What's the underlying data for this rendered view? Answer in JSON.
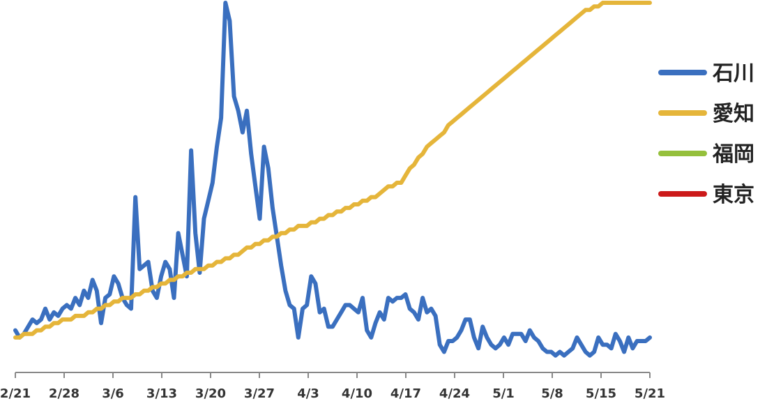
{
  "chart_data": {
    "type": "line",
    "title": "",
    "xlabel": "",
    "ylabel": "",
    "x_ticks": [
      "2/21",
      "2/28",
      "3/6",
      "3/13",
      "3/20",
      "3/27",
      "4/3",
      "4/10",
      "4/17",
      "4/24",
      "5/1",
      "5/8",
      "5/15",
      "5/21"
    ],
    "ylim": [
      0,
      100
    ],
    "grid": false,
    "legend_position": "right",
    "series": [
      {
        "name": "石川",
        "color": "#3a6fbf",
        "values": [
          9,
          7,
          8,
          10,
          12,
          11,
          12,
          15,
          12,
          14,
          13,
          15,
          16,
          15,
          18,
          16,
          20,
          18,
          23,
          20,
          11,
          18,
          19,
          24,
          22,
          18,
          16,
          15,
          46,
          26,
          27,
          28,
          20,
          18,
          24,
          28,
          26,
          18,
          36,
          30,
          24,
          59,
          36,
          25,
          40,
          45,
          50,
          60,
          68,
          100,
          95,
          74,
          70,
          64,
          70,
          58,
          49,
          40,
          60,
          54,
          43,
          35,
          27,
          20,
          16,
          15,
          7,
          15,
          16,
          24,
          22,
          14,
          15,
          10,
          10,
          12,
          14,
          16,
          16,
          15,
          14,
          18,
          9,
          7,
          11,
          14,
          12,
          18,
          17,
          18,
          18,
          19,
          15,
          14,
          12,
          18,
          14,
          15,
          13,
          5,
          3,
          6,
          6,
          7,
          9,
          12,
          12,
          7,
          4,
          10,
          7,
          5,
          4,
          5,
          7,
          5,
          8,
          8,
          8,
          6,
          9,
          7,
          6,
          4,
          3,
          3,
          2,
          3,
          2,
          3,
          4,
          7,
          5,
          3,
          2,
          3,
          7,
          5,
          5,
          4,
          8,
          6,
          3,
          7,
          4,
          6,
          6,
          6,
          7
        ]
      },
      {
        "name": "愛知",
        "color": "#e5b53a",
        "values": [
          7,
          7,
          8,
          8,
          8,
          9,
          9,
          10,
          10,
          11,
          11,
          12,
          12,
          12,
          13,
          13,
          13,
          14,
          14,
          15,
          15,
          16,
          16,
          17,
          17,
          18,
          18,
          18,
          19,
          19,
          20,
          20,
          21,
          21,
          22,
          22,
          23,
          23,
          24,
          24,
          25,
          25,
          26,
          26,
          26,
          27,
          27,
          28,
          28,
          29,
          29,
          30,
          30,
          31,
          32,
          32,
          33,
          33,
          34,
          34,
          35,
          35,
          36,
          36,
          37,
          37,
          38,
          38,
          38,
          39,
          39,
          40,
          40,
          41,
          41,
          42,
          42,
          43,
          43,
          44,
          44,
          45,
          45,
          46,
          46,
          47,
          48,
          49,
          49,
          50,
          50,
          52,
          54,
          55,
          57,
          58,
          60,
          61,
          62,
          63,
          64,
          66,
          67,
          68,
          69,
          70,
          71,
          72,
          73,
          74,
          75,
          76,
          77,
          78,
          79,
          80,
          81,
          82,
          83,
          84,
          85,
          86,
          87,
          88,
          89,
          90,
          91,
          92,
          93,
          94,
          95,
          96,
          97,
          98,
          98,
          99,
          99,
          100,
          100,
          100,
          100,
          100,
          100,
          100,
          100,
          100,
          100,
          100,
          100
        ]
      },
      {
        "name": "福岡",
        "color": "#95c03c",
        "values": []
      },
      {
        "name": "東京",
        "color": "#cc1a1a",
        "values": []
      }
    ]
  }
}
